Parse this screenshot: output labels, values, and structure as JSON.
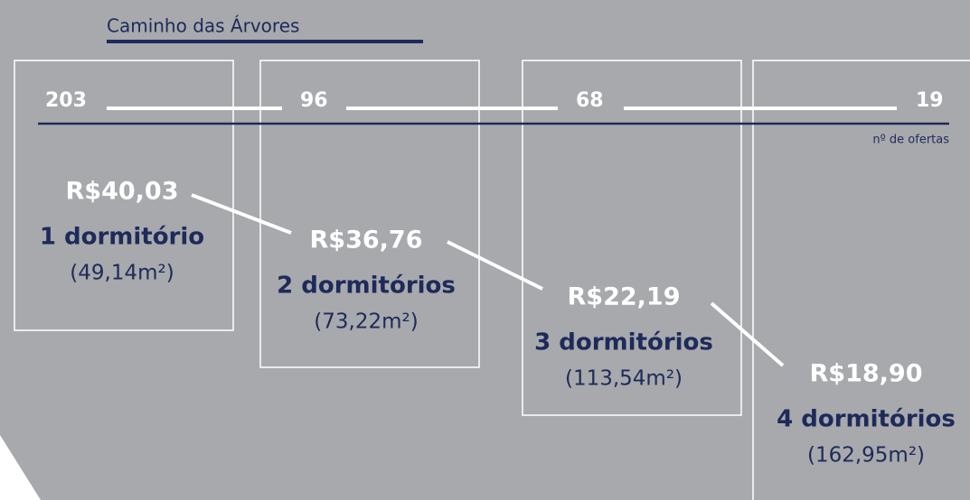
{
  "header": {
    "title": "Caminho das Árvores"
  },
  "offers": {
    "label": "nº de ofertas",
    "counts": [
      "203",
      "96",
      "68",
      "19"
    ]
  },
  "items": [
    {
      "price": "R$40,03",
      "rooms": "1 dormitório",
      "area": "(49,14m²)"
    },
    {
      "price": "R$36,76",
      "rooms": "2 dormitórios",
      "area": "(73,22m²)"
    },
    {
      "price": "R$22,19",
      "rooms": "3 dormitórios",
      "area": "(113,54m²)"
    },
    {
      "price": "R$18,90",
      "rooms": "4 dormitórios",
      "area": "(162,95m²)"
    }
  ]
}
